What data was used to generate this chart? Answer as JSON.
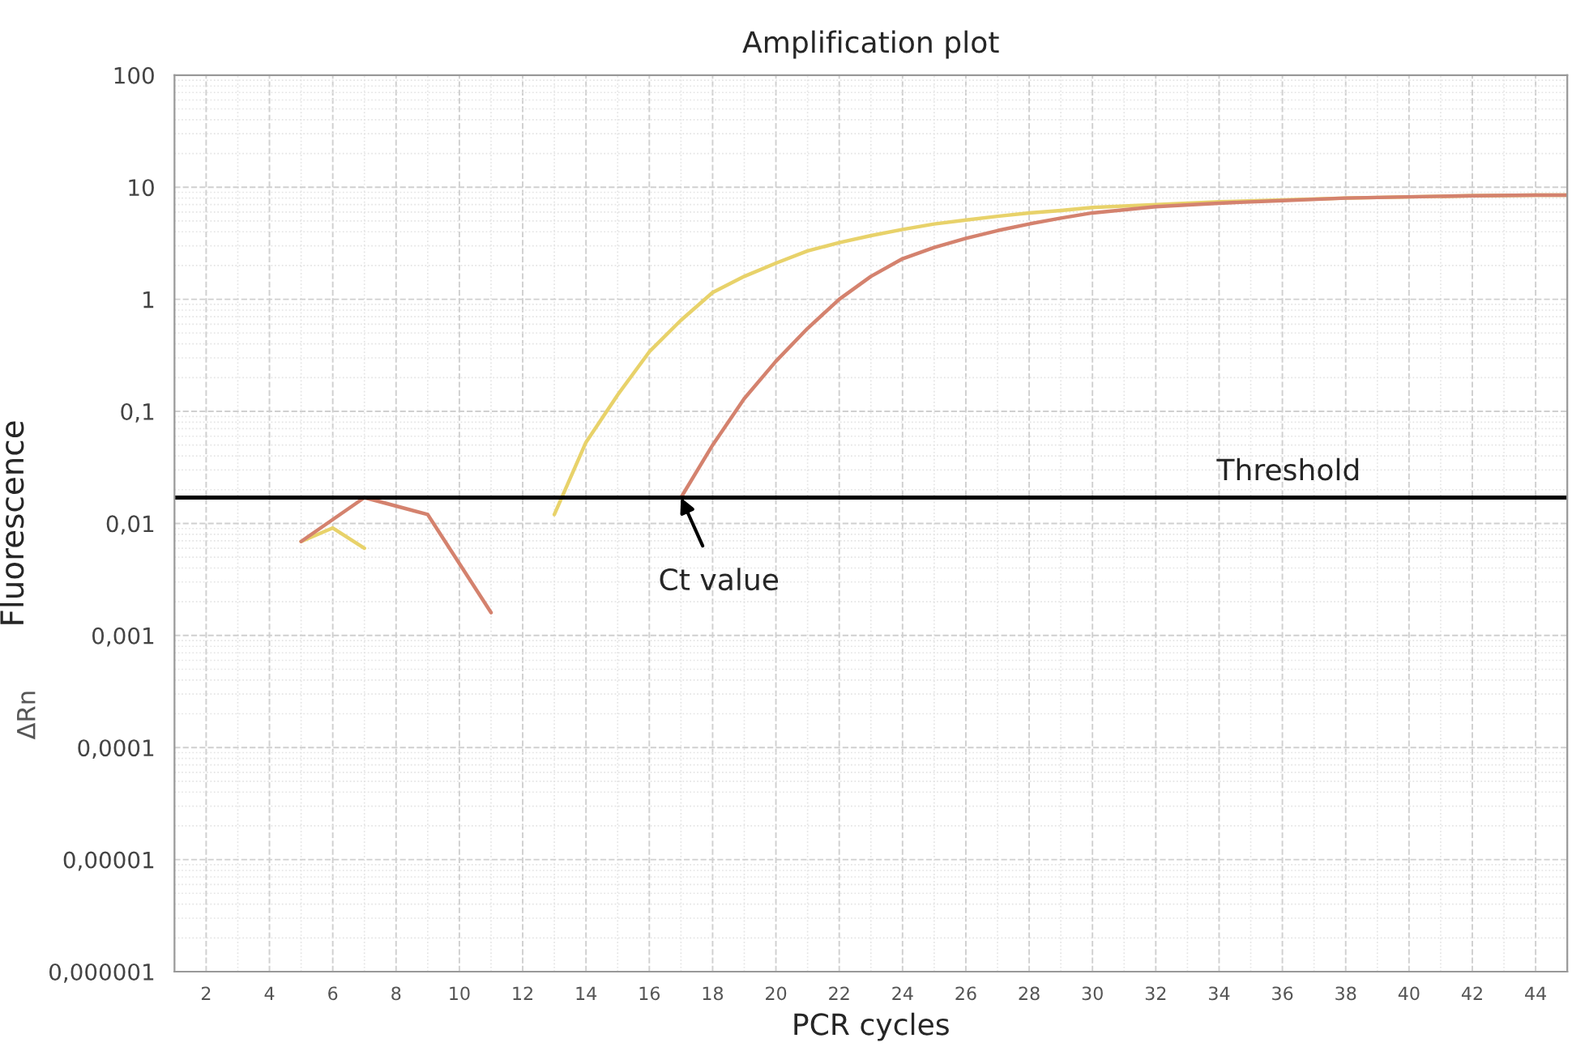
{
  "chart_data": {
    "type": "line",
    "title": "Amplification plot",
    "xlabel": "PCR cycles",
    "ylabel": "Fluorescence",
    "annotations": [
      "ΔRn",
      {
        "text": "Ct value",
        "x": 17,
        "y": 0.017
      }
    ],
    "log": "y",
    "xlim": [
      1,
      45
    ],
    "xticks": [
      2,
      4,
      6,
      8,
      10,
      12,
      14,
      16,
      18,
      20,
      22,
      24,
      26,
      28,
      30,
      32,
      34,
      36,
      38,
      40,
      42,
      44
    ],
    "ylim": [
      1e-06,
      100
    ],
    "yticks": [
      {
        "value": 1e-06,
        "label": "0,000001"
      },
      {
        "value": 1e-05,
        "label": "0,00001"
      },
      {
        "value": 0.0001,
        "label": "0,0001"
      },
      {
        "value": 0.001,
        "label": "0,001"
      },
      {
        "value": 0.01,
        "label": "0,01"
      },
      {
        "value": 0.1,
        "label": "0,1"
      },
      1,
      10,
      100
    ],
    "grid": true,
    "legend": false,
    "marker": "none",
    "line_style": "solid",
    "ref_lines": [
      {
        "axis": "y",
        "value": 0.017,
        "label": "Threshold",
        "color": "#000000",
        "line_style": "solid"
      }
    ],
    "series": [
      {
        "color": "#e8d26a",
        "x": [
          5,
          6,
          7,
          10,
          13,
          14,
          15,
          16,
          17,
          18,
          19,
          20,
          21,
          22,
          23,
          24,
          25,
          26,
          27,
          28,
          29,
          30,
          32,
          34,
          36,
          38,
          40,
          42,
          44,
          45
        ],
        "values": [
          0.0069,
          0.0091,
          0.006,
          null,
          0.012,
          0.053,
          0.14,
          0.34,
          0.65,
          1.15,
          1.6,
          2.1,
          2.7,
          3.2,
          3.7,
          4.2,
          4.7,
          5.1,
          5.5,
          5.9,
          6.2,
          6.6,
          7.0,
          7.4,
          7.7,
          8.0,
          8.2,
          8.4,
          8.5,
          8.5
        ]
      },
      {
        "color": "#d4826e",
        "x": [
          5,
          7,
          9,
          11,
          14,
          17,
          18,
          19,
          20,
          21,
          22,
          23,
          24,
          25,
          26,
          27,
          28,
          29,
          30,
          32,
          34,
          36,
          38,
          40,
          42,
          44,
          45
        ],
        "values": [
          0.0069,
          0.017,
          0.012,
          0.0016,
          null,
          0.017,
          0.05,
          0.13,
          0.28,
          0.55,
          1.0,
          1.6,
          2.3,
          2.9,
          3.5,
          4.1,
          4.7,
          5.3,
          5.9,
          6.7,
          7.2,
          7.6,
          8.0,
          8.2,
          8.4,
          8.5,
          8.5
        ]
      }
    ]
  }
}
